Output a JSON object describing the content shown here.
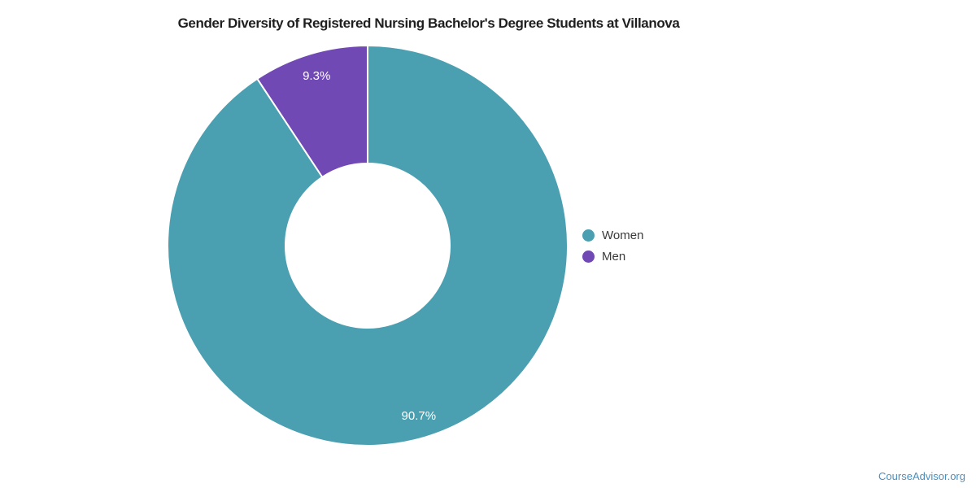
{
  "title": "Gender Diversity of Registered Nursing Bachelor's Degree Students at Villanova",
  "footer": {
    "brand": "CourseAdvisor.org"
  },
  "chart_data": {
    "type": "pie",
    "subtype": "donut",
    "title": "Gender Diversity of Registered Nursing Bachelor's Degree Students at Villanova",
    "categories": [
      "Women",
      "Men"
    ],
    "values": [
      90.7,
      9.3
    ],
    "slices": [
      {
        "label": "Women",
        "value": 90.7,
        "percent_label": "90.7%",
        "color": "#4A9FB1"
      },
      {
        "label": "Men",
        "value": 9.3,
        "percent_label": "9.3%",
        "color": "#7149B5"
      }
    ],
    "legend_position": "right",
    "start_angle_deg": 0,
    "direction": "clockwise",
    "donut_hole_ratio": 0.41,
    "data_label_color": "#FFFFFF",
    "separator_color": "#FFFFFF",
    "title_color": "#1F1F1F",
    "legend_text_color": "#3A3A3A",
    "brand_color": "#4A8FBE"
  }
}
